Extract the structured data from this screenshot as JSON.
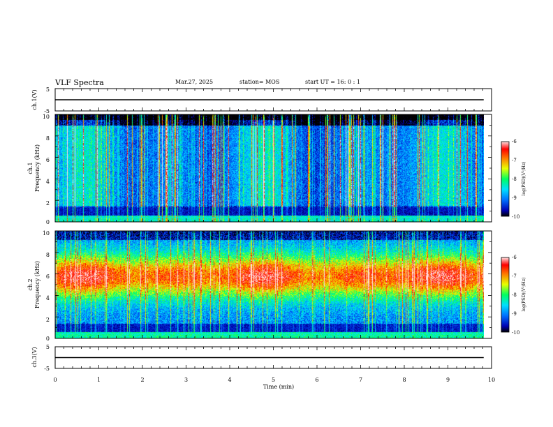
{
  "header": {
    "title": "VLF Spectra",
    "date": "Mar.27, 2025",
    "station": "station= MOS",
    "start_ut": "start  UT =   16: 0  : 1"
  },
  "chart_data": [
    {
      "type": "line",
      "panel": "ch1-waveform",
      "ylabel": "ch.1(V)",
      "ylim": [
        -5,
        5
      ],
      "yticks": [
        "5",
        "-5"
      ],
      "xlim": [
        0,
        10
      ],
      "x": [
        0,
        9.82
      ],
      "y": [
        0,
        0
      ],
      "color": "#000000"
    },
    {
      "type": "heatmap",
      "panel": "ch1-spectrogram",
      "ylabel_line1": "ch.1",
      "ylabel_line2": "Frequency (kHz)",
      "ylim": [
        0,
        10
      ],
      "yticks": [
        "0",
        "2",
        "4",
        "6",
        "8",
        "10"
      ],
      "xlim": [
        0,
        10
      ],
      "data_end_min": 9.82,
      "colorbar": {
        "label": "log(PSD)(V²/Hz)",
        "range": [
          -10,
          -6
        ],
        "ticks": [
          "-6",
          "-7",
          "-8",
          "-9",
          "-10"
        ]
      }
    },
    {
      "type": "heatmap",
      "panel": "ch2-spectrogram",
      "ylabel_line1": "ch.2",
      "ylabel_line2": "Frequency (kHz)",
      "ylim": [
        0,
        10
      ],
      "yticks": [
        "0",
        "2",
        "4",
        "6",
        "8",
        "10"
      ],
      "xlim": [
        0,
        10
      ],
      "data_end_min": 9.82,
      "colorbar": {
        "label": "log(PSD)(V²/Hz)",
        "range": [
          -10,
          -6
        ],
        "ticks": [
          "-6",
          "-7",
          "-8",
          "-9",
          "-10"
        ]
      }
    },
    {
      "type": "line",
      "panel": "ch3-waveform",
      "ylabel": "ch.3(V)",
      "ylim": [
        -5,
        5
      ],
      "yticks": [
        "5",
        "-5"
      ],
      "xlim": [
        0,
        10
      ],
      "x": [
        0,
        9.82
      ],
      "y": [
        0,
        0
      ],
      "color": "#000000",
      "xlabel": "Time  (min)",
      "xticks": [
        "0",
        "1",
        "2",
        "3",
        "4",
        "5",
        "6",
        "7",
        "8",
        "9",
        "10"
      ]
    }
  ]
}
